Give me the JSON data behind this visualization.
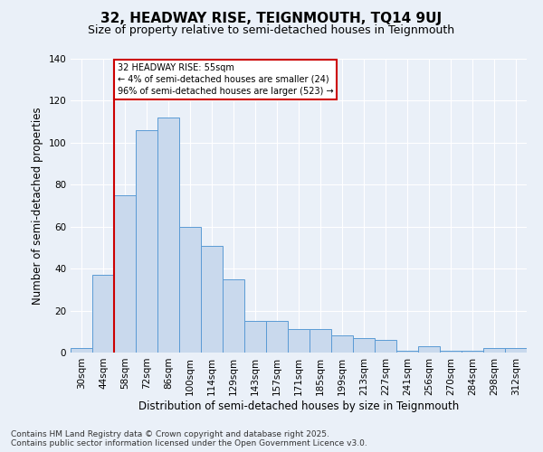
{
  "title": "32, HEADWAY RISE, TEIGNMOUTH, TQ14 9UJ",
  "subtitle": "Size of property relative to semi-detached houses in Teignmouth",
  "xlabel": "Distribution of semi-detached houses by size in Teignmouth",
  "ylabel": "Number of semi-detached properties",
  "categories": [
    "30sqm",
    "44sqm",
    "58sqm",
    "72sqm",
    "86sqm",
    "100sqm",
    "114sqm",
    "129sqm",
    "143sqm",
    "157sqm",
    "171sqm",
    "185sqm",
    "199sqm",
    "213sqm",
    "227sqm",
    "241sqm",
    "256sqm",
    "270sqm",
    "284sqm",
    "298sqm",
    "312sqm"
  ],
  "values": [
    2,
    37,
    75,
    106,
    112,
    60,
    51,
    35,
    15,
    15,
    11,
    11,
    8,
    7,
    6,
    1,
    3,
    1,
    1,
    2,
    2
  ],
  "bar_color": "#c9d9ed",
  "bar_edge_color": "#5b9bd5",
  "property_line_bin": 2,
  "annotation_text": "32 HEADWAY RISE: 55sqm\n← 4% of semi-detached houses are smaller (24)\n96% of semi-detached houses are larger (523) →",
  "annotation_box_color": "#ffffff",
  "annotation_box_edge": "#cc0000",
  "line_color": "#cc0000",
  "ylim": [
    0,
    140
  ],
  "yticks": [
    0,
    20,
    40,
    60,
    80,
    100,
    120,
    140
  ],
  "footer_line1": "Contains HM Land Registry data © Crown copyright and database right 2025.",
  "footer_line2": "Contains public sector information licensed under the Open Government Licence v3.0.",
  "bg_color": "#eaf0f8",
  "plot_bg_color": "#eaf0f8",
  "title_fontsize": 11,
  "subtitle_fontsize": 9,
  "axis_label_fontsize": 8.5,
  "tick_fontsize": 7.5,
  "footer_fontsize": 6.5
}
